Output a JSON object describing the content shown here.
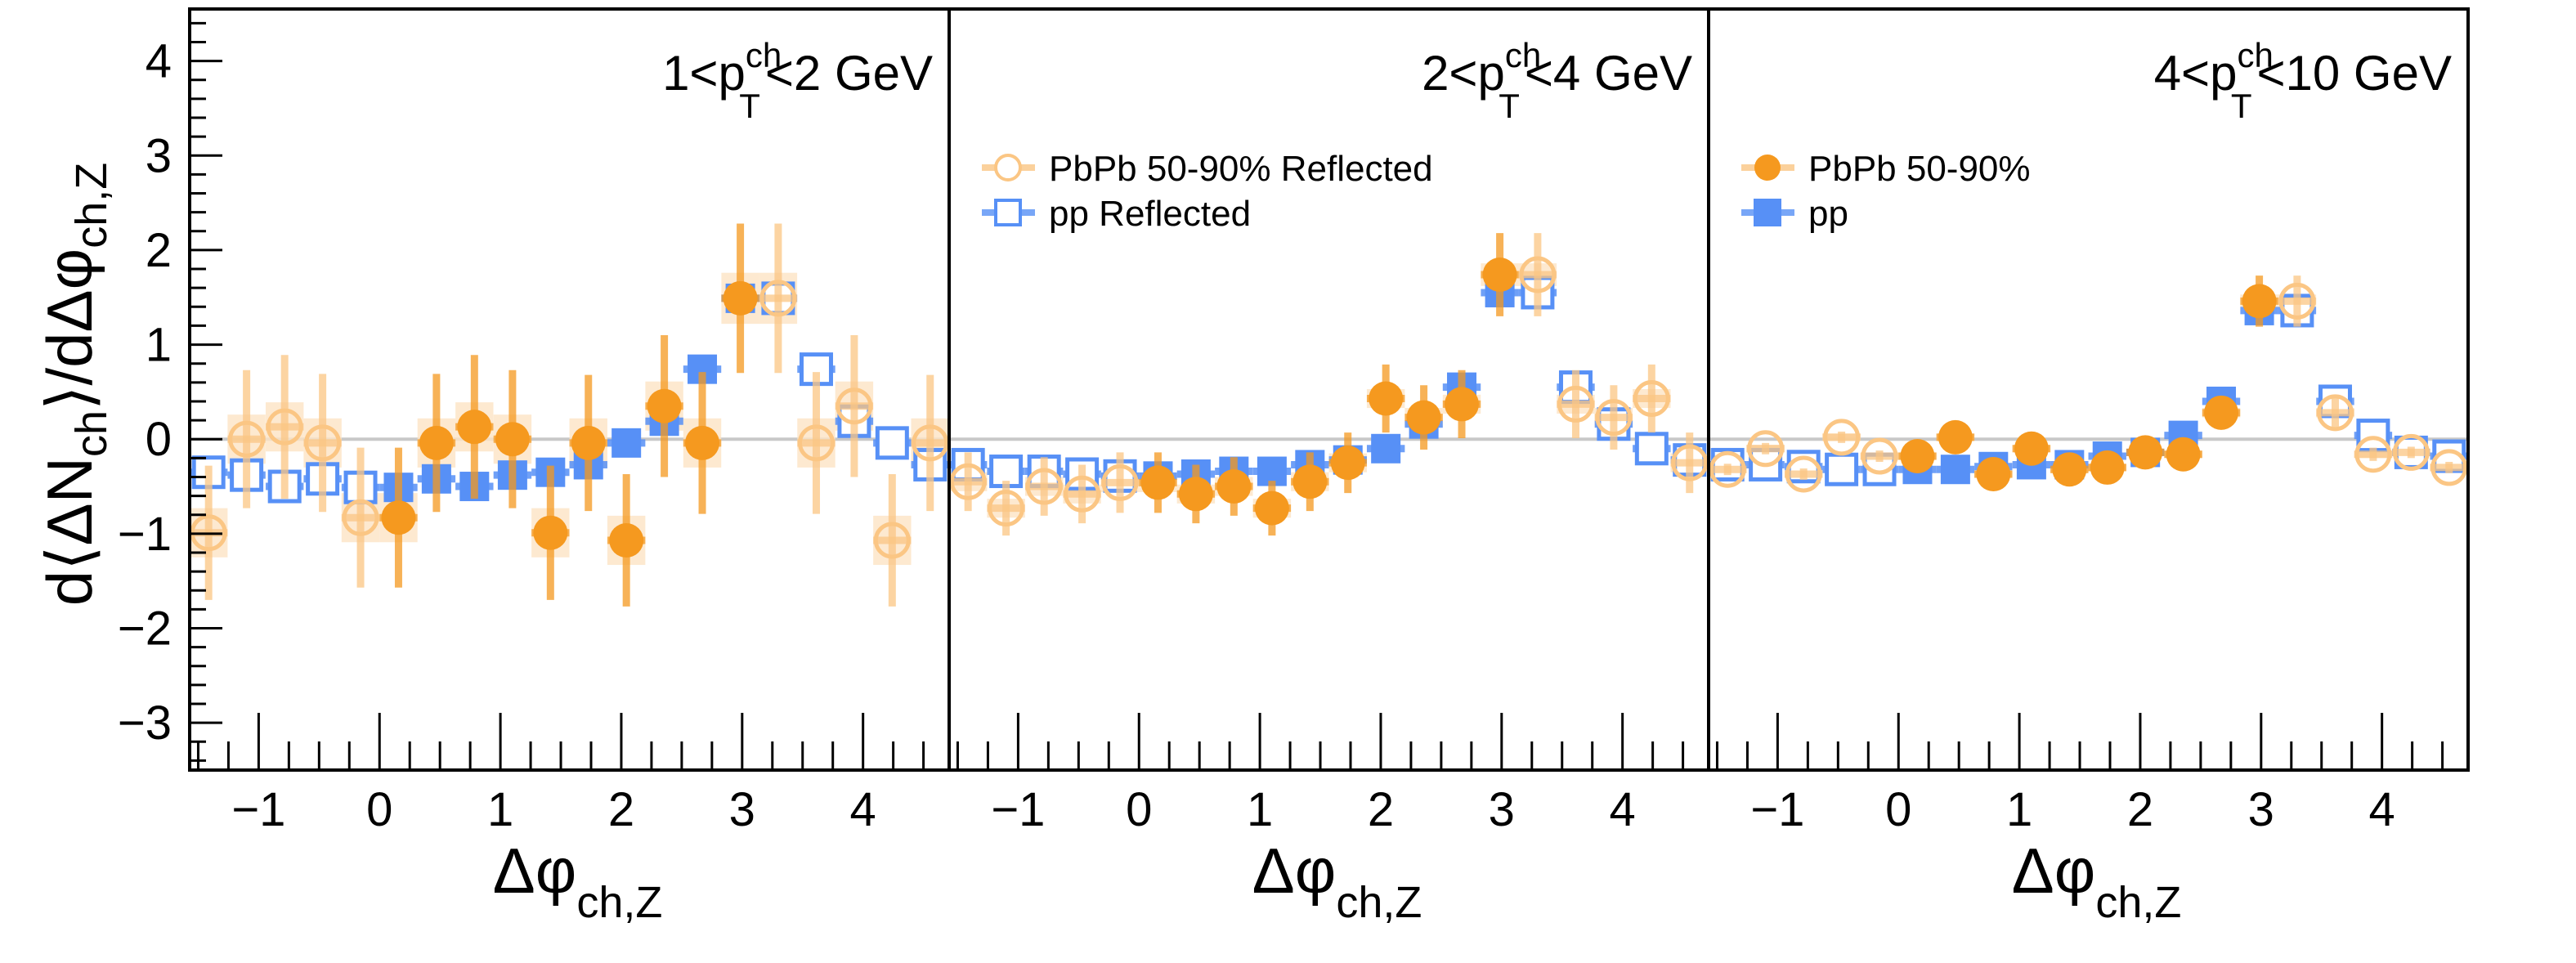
{
  "chart_data": {
    "type": "scatter",
    "ylabel": "d⟨ΔN_ch⟩/dΔφ_ch,Z",
    "xlabel": "Δφ_ch,Z",
    "xlim": [
      -1.5708,
      4.7124
    ],
    "ylim": [
      -3.5,
      4.55
    ],
    "yticks": [
      -3,
      -2,
      -1,
      0,
      1,
      2,
      3,
      4
    ],
    "xticks": [
      -1,
      0,
      1,
      2,
      3,
      4
    ],
    "grid": false,
    "reference_line_y": 0,
    "colors": {
      "pbpb": "#f5991f",
      "pbpb_reflected": "#fbc684",
      "pbpb_sys": "#fde3c4",
      "pp": "#5790f6",
      "zero_line": "#c8c8c8"
    },
    "bin_centers": [
      0.157,
      0.471,
      0.785,
      1.1,
      1.414,
      1.728,
      2.042,
      2.356,
      2.67,
      2.985
    ],
    "legend": [
      {
        "label": "PbPb 50-90% Reflected",
        "marker": "open-circle",
        "panel": 2
      },
      {
        "label": "pp Reflected",
        "marker": "open-square",
        "panel": 2
      },
      {
        "label": "PbPb 50-90%",
        "marker": "filled-circle",
        "panel": 3
      },
      {
        "label": "pp",
        "marker": "filled-square",
        "panel": 3
      }
    ],
    "panels": [
      {
        "label_pre": "1<p",
        "label_sup": "ch",
        "label_sub": "T",
        "label_post": "<2 GeV",
        "pbpb": [
          -0.83,
          -0.04,
          0.13,
          0.0,
          -0.99,
          -0.04,
          -1.07,
          0.35,
          -0.04,
          1.49
        ],
        "pbpb_stat": [
          0.74,
          0.73,
          0.76,
          0.73,
          0.71,
          0.72,
          0.7,
          0.75,
          0.75,
          0.79
        ],
        "pbpb_sys": [
          0.26,
          0.26,
          0.26,
          0.26,
          0.26,
          0.26,
          0.26,
          0.26,
          0.26,
          0.27
        ],
        "pp": [
          -0.51,
          -0.42,
          -0.5,
          -0.38,
          -0.35,
          -0.27,
          -0.04,
          0.19,
          0.74,
          1.49
        ],
        "pp_sys": [
          0.06,
          0.06,
          0.06,
          0.06,
          0.06,
          0.06,
          0.07,
          0.07,
          0.07,
          0.08
        ]
      },
      {
        "label_pre": "2<p",
        "label_sup": "ch",
        "label_sub": "T",
        "label_post": "<4 GeV",
        "pbpb": [
          -0.46,
          -0.58,
          -0.5,
          -0.73,
          -0.45,
          -0.25,
          0.43,
          0.23,
          0.37,
          1.74
        ],
        "pbpb_stat": [
          0.32,
          0.31,
          0.31,
          0.29,
          0.31,
          0.32,
          0.36,
          0.34,
          0.36,
          0.44
        ],
        "pbpb_sys": [
          0.1,
          0.1,
          0.1,
          0.1,
          0.1,
          0.1,
          0.1,
          0.1,
          0.1,
          0.12
        ],
        "pp": [
          -0.39,
          -0.37,
          -0.34,
          -0.34,
          -0.27,
          -0.22,
          -0.1,
          0.16,
          0.55,
          1.55
        ],
        "pp_sys": [
          0.05,
          0.05,
          0.05,
          0.05,
          0.05,
          0.05,
          0.05,
          0.06,
          0.07,
          0.08
        ]
      },
      {
        "label_pre": "4<p",
        "label_sup": "ch",
        "label_sub": "T",
        "label_post": "<10 GeV",
        "pbpb": [
          -0.18,
          0.02,
          -0.37,
          -0.1,
          -0.32,
          -0.3,
          -0.14,
          -0.16,
          0.28,
          1.46
        ],
        "pbpb_stat": [
          0.06,
          0.06,
          0.06,
          0.06,
          0.06,
          0.06,
          0.06,
          0.07,
          0.17,
          0.27
        ],
        "pbpb_sys": [
          0.04,
          0.04,
          0.04,
          0.04,
          0.04,
          0.04,
          0.04,
          0.04,
          0.05,
          0.07
        ],
        "pp": [
          -0.32,
          -0.32,
          -0.29,
          -0.27,
          -0.27,
          -0.18,
          -0.14,
          0.04,
          0.4,
          1.36
        ],
        "pp_sys": [
          0.05,
          0.05,
          0.05,
          0.05,
          0.05,
          0.05,
          0.05,
          0.06,
          0.07,
          0.08
        ]
      }
    ]
  }
}
